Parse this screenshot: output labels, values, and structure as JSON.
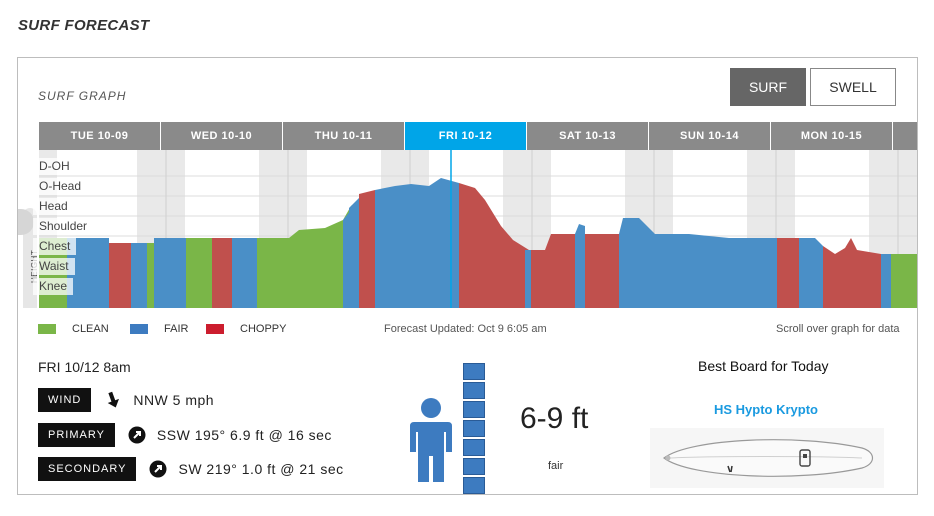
{
  "page_title": "SURF FORECAST",
  "graph": {
    "title": "SURF GRAPH",
    "toggle_surf": "SURF",
    "toggle_swell": "SWELL",
    "days": [
      "TUE 10-09",
      "WED 10-10",
      "THU 10-11",
      "FRI 10-12",
      "SAT 10-13",
      "SUN 10-14",
      "MON 10-15"
    ],
    "active_day": "FRI 10-12",
    "height_labels": [
      "D-OH",
      "O-Head",
      "Head",
      "Shoulder",
      "Chest",
      "Waist",
      "Knee"
    ],
    "height_axis_label": "HEIGHT"
  },
  "legend": [
    {
      "label": "CLEAN",
      "color": "#7ab648"
    },
    {
      "label": "FAIR",
      "color": "#4a8fc7"
    },
    {
      "label": "CHOPPY",
      "color": "#c0504d"
    }
  ],
  "colors": {
    "clean": "#7ab648",
    "fair": "#4a8fc7",
    "choppy": "#c0504d",
    "legend_choppy": "#cc1d2e",
    "accent": "#00a5e8"
  },
  "forecast_updated": "Forecast Updated: Oct 9 6:05 am",
  "scroll_note": "Scroll over graph for data",
  "current": {
    "when": "FRI 10/12 8am",
    "wind": {
      "tag": "WIND",
      "value": "NNW 5 mph",
      "icon": "arrow-down-icon"
    },
    "primary": {
      "tag": "PRIMARY",
      "value": "SSW 195° 6.9 ft @ 16 sec",
      "icon": "arrow-up-right-icon"
    },
    "secondary": {
      "tag": "SECONDARY",
      "value": "SW 219° 1.0 ft @ 21 sec",
      "icon": "arrow-up-right-icon"
    },
    "wave_height": "6-9 ft",
    "quality": "fair",
    "height_blocks": 7
  },
  "board": {
    "title": "Best Board for Today",
    "name": "HS Hypto Krypto"
  }
}
